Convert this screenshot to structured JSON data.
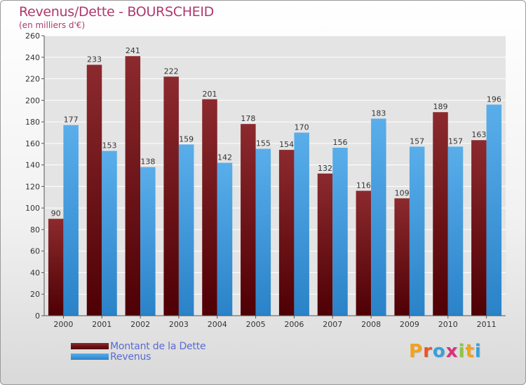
{
  "header": {
    "title": "Revenus/Dette - BOURSCHEID",
    "subtitle": "(en milliers d'€)"
  },
  "logo": {
    "text": "Proxiti"
  },
  "colors": {
    "dette": "#6b0f12",
    "revenus": "#3d95db",
    "title": "#b0386e",
    "legend_text": "#5a6ad6"
  },
  "chart_data": {
    "type": "bar",
    "title": "Revenus/Dette - BOURSCHEID",
    "subtitle": "(en milliers d'€)",
    "categories": [
      "2000",
      "2001",
      "2002",
      "2003",
      "2004",
      "2005",
      "2006",
      "2007",
      "2008",
      "2009",
      "2010",
      "2011"
    ],
    "series": [
      {
        "name": "Montant de la Dette",
        "values": [
          90,
          233,
          241,
          222,
          201,
          178,
          154,
          132,
          116,
          109,
          189,
          163
        ]
      },
      {
        "name": "Revenus",
        "values": [
          177,
          153,
          138,
          159,
          142,
          155,
          170,
          156,
          183,
          157,
          157,
          196
        ]
      }
    ],
    "ylim": [
      0,
      260
    ],
    "yticks": [
      0,
      20,
      40,
      60,
      80,
      100,
      120,
      140,
      160,
      180,
      200,
      220,
      240,
      260
    ],
    "grid": true,
    "legend_position": "bottom-left"
  }
}
